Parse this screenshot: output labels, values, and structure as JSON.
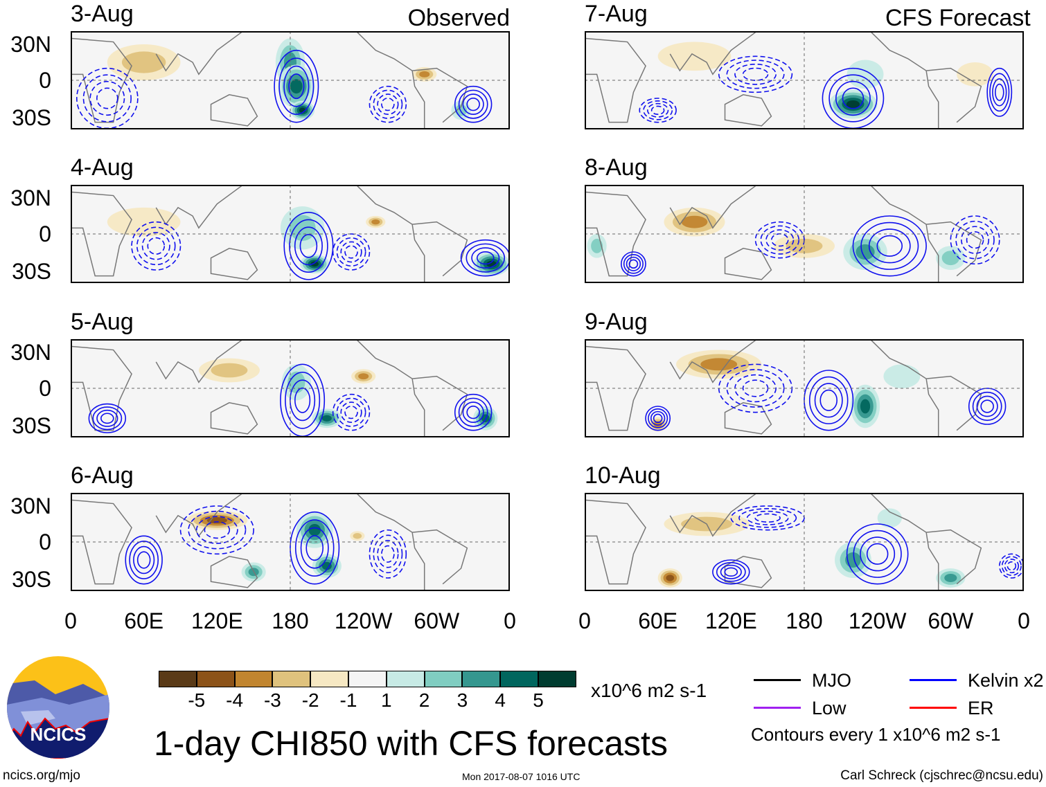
{
  "chart_data": {
    "type": "heatmap",
    "title": "1-day CHI850 with CFS forecasts",
    "variable": "CHI850",
    "units": "x10^6 m2 s-1",
    "xlabel": "",
    "ylabel": "",
    "x_ticks": [
      "0",
      "60E",
      "120E",
      "180",
      "120W",
      "60W",
      "0"
    ],
    "y_ticks": [
      "30N",
      "0",
      "30S"
    ],
    "panels": [
      {
        "date": "3-Aug",
        "tag": "Observed",
        "column": "left"
      },
      {
        "date": "4-Aug",
        "tag": "",
        "column": "left"
      },
      {
        "date": "5-Aug",
        "tag": "",
        "column": "left"
      },
      {
        "date": "6-Aug",
        "tag": "",
        "column": "left"
      },
      {
        "date": "7-Aug",
        "tag": "CFS Forecast",
        "column": "right"
      },
      {
        "date": "8-Aug",
        "tag": "",
        "column": "right"
      },
      {
        "date": "9-Aug",
        "tag": "",
        "column": "right"
      },
      {
        "date": "10-Aug",
        "tag": "",
        "column": "right"
      }
    ],
    "colorbar": {
      "labels": [
        "-5",
        "-4",
        "-3",
        "-2",
        "-1",
        "1",
        "2",
        "3",
        "4",
        "5"
      ],
      "colors": [
        "#5a3a17",
        "#8c5319",
        "#c1852f",
        "#dfc27d",
        "#f6e8c3",
        "#f5f5f5",
        "#c7eae5",
        "#80cdc1",
        "#35978f",
        "#01665e",
        "#003c30"
      ]
    },
    "legend": [
      {
        "label": "MJO",
        "color": "#000000"
      },
      {
        "label": "Kelvin x2",
        "color": "#0000ff"
      },
      {
        "label": "Low",
        "color": "#a020f0"
      },
      {
        "label": "ER",
        "color": "#ff0000"
      }
    ],
    "contour_note": "Contours every 1 x10^6 m2 s-1"
  },
  "logo": {
    "text": "NCICS"
  },
  "footer": {
    "left": "ncics.org/mjo",
    "center": "Mon 2017-08-07 1016 UTC",
    "right": "Carl Schreck (cjschrec@ncsu.edu)"
  }
}
